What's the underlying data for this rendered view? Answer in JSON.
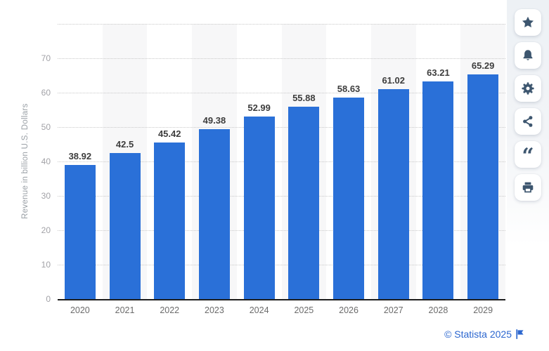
{
  "chart_data": {
    "type": "bar",
    "title": "",
    "categories": [
      "2020",
      "2021",
      "2022",
      "2023",
      "2024",
      "2025",
      "2026",
      "2027",
      "2028",
      "2029"
    ],
    "values": [
      38.92,
      42.5,
      45.42,
      49.38,
      52.99,
      55.88,
      58.63,
      61.02,
      63.21,
      65.29
    ],
    "value_labels": [
      "38.92",
      "42.5",
      "45.42",
      "49.38",
      "52.99",
      "55.88",
      "58.63",
      "61.02",
      "63.21",
      "65.29"
    ],
    "xlabel": "",
    "ylabel": "Revenue in billion U.S. Dollars",
    "ylim": [
      0,
      80
    ],
    "yticks": [
      0,
      10,
      20,
      30,
      40,
      50,
      60,
      70
    ],
    "gridlines": [
      10,
      20,
      30,
      40,
      50,
      60,
      70,
      80
    ],
    "grid_style": "dotted horizontal",
    "legend": "none",
    "plot_bands": "alternating light column bands behind odd categories",
    "bar_color": "#2a70d8",
    "band_color": "#f7f7f8"
  },
  "colors": {
    "accent_blue": "#2a70d8",
    "icon_navy": "#3d566f",
    "grid": "#c9c9c9",
    "axis": "#1d1d1d",
    "ytick_label": "#a2a2a7",
    "xtick_label": "#6b6b6b",
    "value_label": "#3d3d3d",
    "panel_top": "#edf1f5",
    "credit_blue": "#2b66cf"
  },
  "sidebar": {
    "buttons": [
      {
        "label": "favorite",
        "icon": "star-icon"
      },
      {
        "label": "notifications",
        "icon": "bell-icon"
      },
      {
        "label": "settings",
        "icon": "gear-icon"
      },
      {
        "label": "share",
        "icon": "share-icon"
      },
      {
        "label": "cite",
        "icon": "quote-icon"
      },
      {
        "label": "print",
        "icon": "printer-icon"
      }
    ]
  },
  "credit": {
    "text": "© Statista 2025",
    "flag_icon": "statista-flag"
  }
}
